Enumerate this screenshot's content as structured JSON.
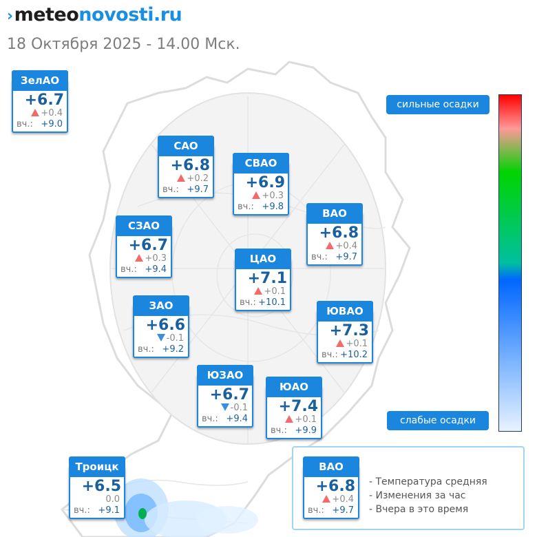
{
  "logo": {
    "mark": "›",
    "part1": "meteo",
    "part2": "novosti.ru"
  },
  "subtitle": "18 Октября 2025 - 14.00 Мск.",
  "scale": {
    "top_label": "сильные осадки",
    "bottom_label": "слабые осадки"
  },
  "districts": {
    "zelao": {
      "name": "ЗелАО",
      "temp": "+6.7",
      "trend": "up",
      "change": "+0.4",
      "yesterday_label": "вч.:",
      "yesterday": "+9.0"
    },
    "sao": {
      "name": "САО",
      "temp": "+6.8",
      "trend": "up",
      "change": "+0.2",
      "yesterday_label": "вч.:",
      "yesterday": "+9.7"
    },
    "svao": {
      "name": "СВАО",
      "temp": "+6.9",
      "trend": "up",
      "change": "+0.3",
      "yesterday_label": "вч.:",
      "yesterday": "+9.8"
    },
    "vao": {
      "name": "ВАО",
      "temp": "+6.8",
      "trend": "up",
      "change": "+0.4",
      "yesterday_label": "вч.:",
      "yesterday": "+9.7"
    },
    "szao": {
      "name": "СЗАО",
      "temp": "+6.7",
      "trend": "up",
      "change": "+0.3",
      "yesterday_label": "вч.:",
      "yesterday": "+9.4"
    },
    "cao": {
      "name": "ЦАО",
      "temp": "+7.1",
      "trend": "up",
      "change": "+0.1",
      "yesterday_label": "вч.:",
      "yesterday": "+10.1"
    },
    "zao": {
      "name": "ЗАО",
      "temp": "+6.6",
      "trend": "down",
      "change": "-0.1",
      "yesterday_label": "вч.:",
      "yesterday": "+9.2"
    },
    "yuvao": {
      "name": "ЮВАО",
      "temp": "+7.3",
      "trend": "up",
      "change": "+0.1",
      "yesterday_label": "вч.:",
      "yesterday": "+10.2"
    },
    "yuzao": {
      "name": "ЮЗАО",
      "temp": "+6.7",
      "trend": "down",
      "change": "-0.1",
      "yesterday_label": "вч.:",
      "yesterday": "+9.4"
    },
    "yuao": {
      "name": "ЮАО",
      "temp": "+7.4",
      "trend": "up",
      "change": "+0.1",
      "yesterday_label": "вч.:",
      "yesterday": "+9.9"
    },
    "troitsk": {
      "name": "Троицк",
      "temp": "+6.5",
      "trend": "none",
      "change": "0.0",
      "yesterday_label": "вч.:",
      "yesterday": "+9.1"
    }
  },
  "legend": {
    "sample": {
      "name": "ВАО",
      "temp": "+6.8",
      "trend": "up",
      "change": "+0.4",
      "yesterday_label": "вч.:",
      "yesterday": "+9.7"
    },
    "line1": "- Температура средняя",
    "line2": "- Изменения за час",
    "line3": "- Вчера в это время"
  },
  "colors": {
    "card_header": "#1b86de",
    "temp_text": "#1a5f9e",
    "rise_arrow": "#f16b6b",
    "fall_arrow": "#3a8ee0"
  }
}
